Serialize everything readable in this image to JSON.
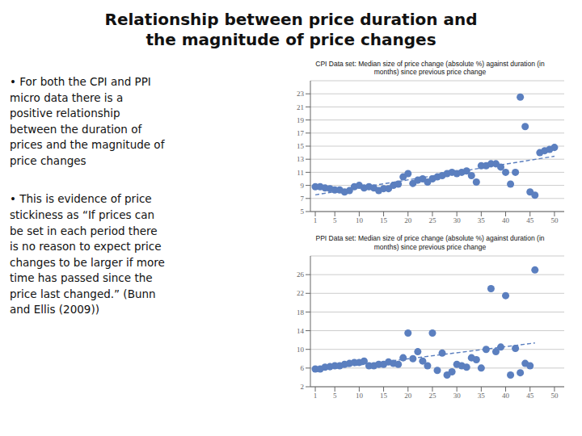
{
  "title": "Relationship between price duration and\nthe magnitude of price changes",
  "annotations": [
    "•  For both the CPI and PPI\nmicro data there is a\npositive relationship\nbetween the duration of\nprices and the magnitude of\nprice changes",
    "•  This is evidence of price\nstickiness as “If prices can\nbe set in each period there\nis no reason to expect price\nchanges to be larger if more\ntime has passed since the\nprice last changed.” (Bunn\nand Ellis (2009))"
  ],
  "chart_data": [
    {
      "type": "scatter",
      "title": "CPI Data set: Median size of price change (absolute %) against duration (in\nmonths) since previous price change",
      "xlim": [
        0,
        52
      ],
      "xticks": [
        1,
        5,
        10,
        15,
        20,
        25,
        30,
        35,
        40,
        45,
        50
      ],
      "ylim": [
        5,
        25
      ],
      "yticks": [
        5,
        7,
        9,
        11,
        13,
        15,
        17,
        19,
        21,
        23
      ],
      "grid": true,
      "series": [
        {
          "type": "scatter",
          "marker": "circle",
          "color": "#5B7FBF",
          "x": [
            1,
            2,
            3,
            4,
            5,
            6,
            7,
            8,
            9,
            10,
            11,
            12,
            13,
            14,
            15,
            16,
            17,
            18,
            19,
            20,
            21,
            22,
            23,
            24,
            25,
            26,
            27,
            28,
            29,
            30,
            31,
            32,
            33,
            34,
            35,
            36,
            37,
            38,
            39,
            40,
            41,
            42,
            43,
            44,
            45,
            46,
            47,
            48,
            49,
            50
          ],
          "values": [
            8.8,
            8.8,
            8.6,
            8.5,
            8.3,
            8.3,
            8.0,
            8.2,
            8.8,
            9.0,
            8.6,
            8.8,
            8.6,
            8.2,
            8.5,
            8.5,
            9.0,
            9.2,
            10.3,
            10.8,
            9.3,
            9.8,
            10.0,
            9.5,
            10.0,
            10.3,
            10.5,
            10.8,
            11.0,
            10.8,
            11.0,
            11.2,
            10.5,
            9.5,
            12.0,
            12.0,
            12.3,
            12.3,
            11.8,
            11.0,
            9.2,
            11.0,
            22.5,
            18.0,
            8.0,
            7.5,
            14.0,
            14.3,
            14.5,
            14.8
          ]
        },
        {
          "type": "line",
          "line_style": "dashed",
          "color": "#5B7FBF",
          "x": [
            1,
            50
          ],
          "values": [
            7.5532,
            13.4548
          ]
        }
      ]
    },
    {
      "type": "scatter",
      "title": "PPI Data set: Median size of price change (absolute %) against duration (in\nmonths) since previous price change",
      "xlim": [
        0,
        52
      ],
      "xticks": [
        1,
        5,
        10,
        15,
        20,
        25,
        30,
        35,
        40,
        45,
        50
      ],
      "ylim": [
        2,
        30
      ],
      "yticks": [
        2,
        6,
        10,
        14,
        18,
        22,
        26
      ],
      "grid": true,
      "series": [
        {
          "type": "scatter",
          "marker": "circle",
          "color": "#5B7FBF",
          "x": [
            1,
            2,
            3,
            4,
            5,
            6,
            7,
            8,
            9,
            10,
            11,
            12,
            13,
            14,
            15,
            16,
            17,
            18,
            19,
            20,
            21,
            22,
            23,
            24,
            25,
            26,
            27,
            28,
            29,
            30,
            31,
            32,
            33,
            34,
            35,
            36,
            37,
            38,
            39,
            40,
            41,
            42,
            43,
            44,
            45,
            46
          ],
          "values": [
            5.8,
            5.8,
            6.2,
            6.3,
            6.5,
            6.5,
            6.8,
            7.0,
            7.2,
            7.2,
            7.5,
            6.5,
            6.5,
            6.8,
            6.8,
            7.3,
            7.0,
            6.8,
            8.2,
            13.5,
            8.0,
            9.5,
            7.5,
            6.5,
            13.5,
            5.5,
            9.2,
            4.5,
            5.2,
            6.8,
            6.5,
            6.2,
            8.2,
            7.8,
            6.0,
            10.0,
            23.0,
            9.5,
            10.5,
            21.5,
            4.5,
            10.2,
            5.0,
            7.0,
            6.5,
            27.0
          ]
        },
        {
          "type": "line",
          "line_style": "dashed",
          "color": "#5B7FBF",
          "x": [
            1,
            46
          ],
          "values": [
            5.492,
            11.3688
          ]
        }
      ]
    }
  ]
}
